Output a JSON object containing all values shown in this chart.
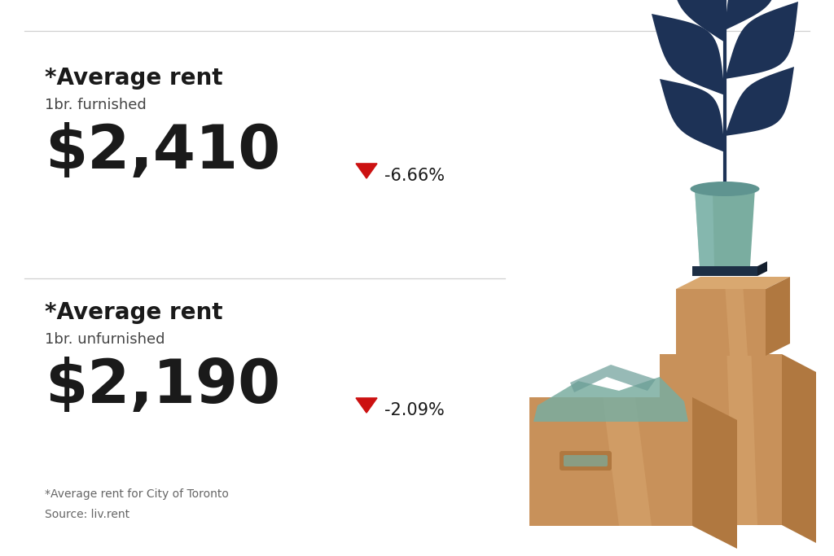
{
  "background_color": "#ffffff",
  "divider_color": "#d0d0d0",
  "title1": "*Average rent",
  "subtitle1": "1br. furnished",
  "value1": "$2,410",
  "change1": "-6.66%",
  "title2": "*Average rent",
  "subtitle2": "1br. unfurnished",
  "value2": "$2,190",
  "change2": "-2.09%",
  "footnote": "*Average rent for City of Toronto",
  "source": "Source: liv.rent",
  "arrow_color": "#cc1111",
  "title_color": "#1a1a1a",
  "value_color": "#1a1a1a",
  "change_color": "#1a1a1a",
  "subtitle_color": "#444444",
  "footnote_color": "#666666",
  "title_fontsize": 20,
  "subtitle_fontsize": 13,
  "value_fontsize": 54,
  "change_fontsize": 15,
  "footnote_fontsize": 10,
  "plant_leaf_color": "#1d3256",
  "pot_color": "#7aada0",
  "pot_dark_color": "#5f9490",
  "pot_rim_color": "#1d3256",
  "box_main_color": "#c8915a",
  "box_light_color": "#d9a870",
  "box_shadow_color": "#b07840",
  "box_highlight_color": "#d4a878",
  "cloth_color": "#7aada0"
}
